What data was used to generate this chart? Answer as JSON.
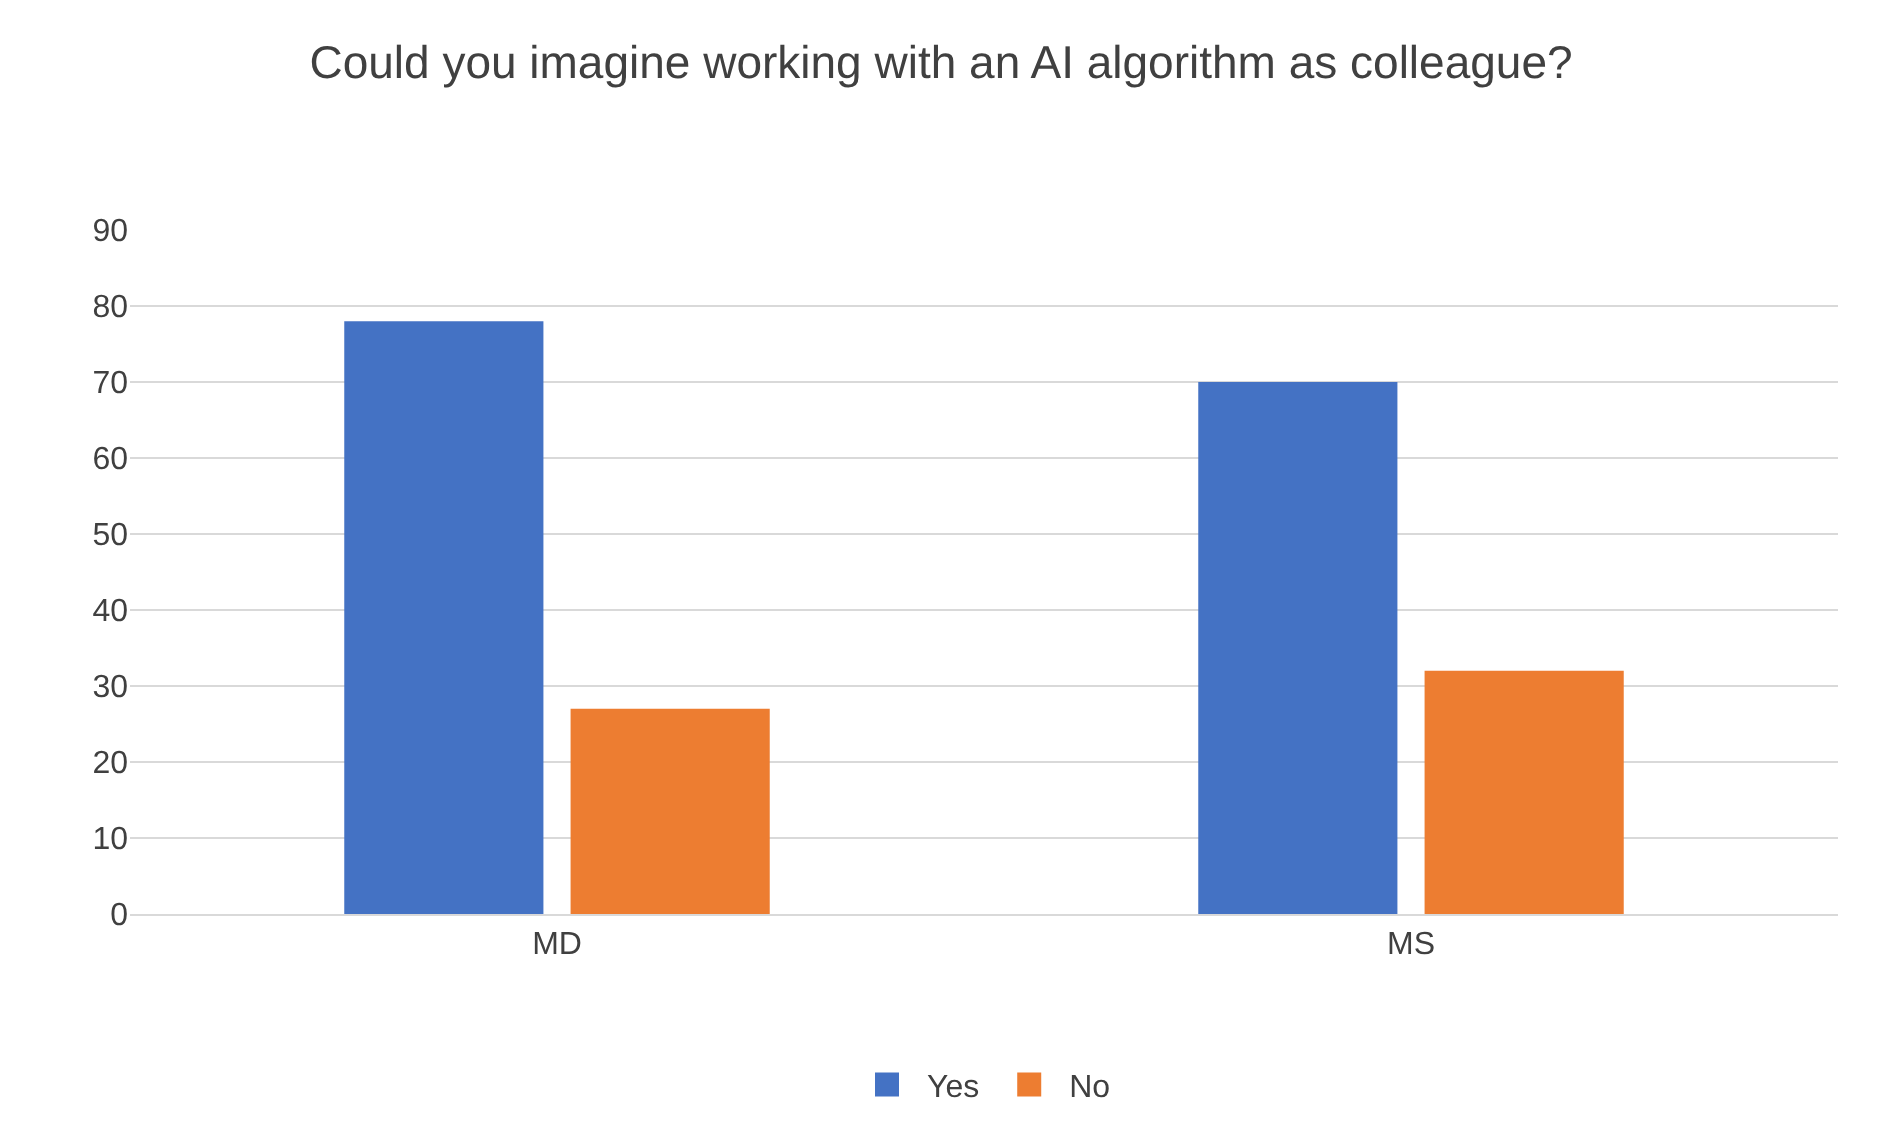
{
  "chart_data": {
    "type": "bar",
    "title": "Could you imagine working with an AI algorithm as colleague?",
    "categories": [
      "MD",
      "MS"
    ],
    "series": [
      {
        "name": "Yes",
        "color": "#4472c4",
        "values": [
          78,
          70
        ]
      },
      {
        "name": "No",
        "color": "#ed7d31",
        "values": [
          27,
          32
        ]
      }
    ],
    "ylim": [
      0,
      90
    ],
    "yticks": [
      0,
      10,
      20,
      30,
      40,
      50,
      60,
      70,
      80,
      90
    ],
    "grid": "y",
    "legend": "bottom"
  }
}
